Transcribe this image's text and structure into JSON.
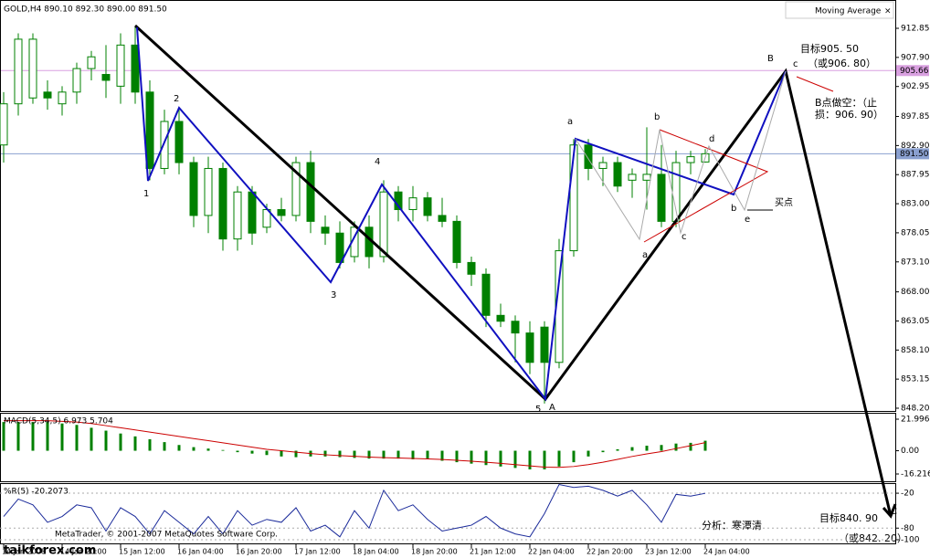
{
  "chart_data": {
    "type": "candlestick",
    "title": "GOLD,H4  890.10 892.30 890.00 891.50",
    "indicator_name": "Moving Average",
    "categories": [
      "14 Jan 2008",
      null,
      null,
      null,
      "14 Jan 20:00",
      null,
      null,
      null,
      "15 Jan 12:00",
      null,
      null,
      null,
      "16 Jan 04:00",
      null,
      null,
      null,
      "16 Jan 20:00",
      null,
      null,
      null,
      "17 Jan 12:00",
      null,
      null,
      null,
      "18 Jan 04:00",
      null,
      null,
      null,
      "18 Jan 20:00",
      null,
      null,
      null,
      "21 Jan 12:00",
      null,
      null,
      null,
      "22 Jan 04:00",
      null,
      null,
      null,
      "22 Jan 20:00",
      null,
      null,
      null,
      "23 Jan 12:00",
      null,
      null,
      null,
      "24 Jan 04:00"
    ],
    "open": [
      893,
      900,
      901,
      902,
      900,
      902,
      906,
      905,
      903,
      910,
      902,
      889,
      897,
      890,
      881,
      889,
      877,
      885,
      879,
      882,
      881,
      890,
      879,
      878,
      874,
      879,
      874,
      885,
      882,
      884,
      881,
      880,
      873,
      871,
      864,
      863,
      861,
      862,
      856,
      875,
      893,
      889,
      890,
      887,
      887,
      888,
      880,
      890,
      890.1
    ],
    "high": [
      902,
      912,
      912,
      904,
      903,
      907,
      909,
      910,
      912,
      913,
      904,
      899,
      899,
      891,
      891,
      890,
      886,
      886,
      883,
      884,
      891,
      892,
      881,
      880,
      880,
      881,
      887,
      886,
      886,
      885,
      884,
      881,
      874,
      872,
      866,
      864,
      863,
      863,
      877,
      894,
      894,
      891,
      891,
      889,
      896,
      893,
      892,
      892,
      892.3
    ],
    "low": [
      890,
      898,
      900,
      899,
      898,
      900,
      904,
      901,
      900,
      900,
      887,
      888,
      888,
      879,
      878,
      875,
      875,
      876,
      878,
      880,
      880,
      878,
      876,
      872,
      873,
      872,
      873,
      880,
      880,
      880,
      879,
      872,
      869,
      862,
      862,
      856,
      854,
      849,
      855,
      874,
      887,
      886,
      885,
      884,
      882,
      879,
      879,
      888,
      890.0
    ],
    "close": [
      900,
      911,
      911,
      901,
      902,
      906,
      908,
      904,
      910,
      902,
      889,
      897,
      890,
      881,
      889,
      877,
      885,
      878,
      882,
      881,
      890,
      880,
      878,
      873,
      879,
      874,
      885,
      882,
      884,
      881,
      880,
      873,
      871,
      864,
      863,
      861,
      856,
      856,
      875,
      893,
      889,
      890,
      886,
      888,
      888,
      880,
      890,
      891,
      891.5
    ],
    "up_color": "#ffffff",
    "down_color": "#008000",
    "candle_outline": "#008000",
    "ylim": [
      847.73,
      914.25
    ],
    "yticks": [
      912.85,
      {
        "value": 907.9,
        "label": "907.90"
      },
      902.95,
      897.85,
      {
        "value": 892.9,
        "label": "892.90"
      },
      887.95,
      {
        "value": 883,
        "label": "883.00"
      },
      878.05,
      {
        "value": 873.1,
        "label": "873.10"
      },
      {
        "value": 868,
        "label": "868.00"
      },
      863.05,
      {
        "value": 858.1,
        "label": "858.10"
      },
      853.15,
      {
        "value": 848.2,
        "label": "848.20"
      }
    ],
    "price_lines": [
      {
        "value": 905.66,
        "label": "905.66",
        "color": "#d9a0e0"
      },
      {
        "value": 891.5,
        "label": "891.50",
        "color": "#8aa0d0"
      }
    ],
    "annotations": [
      {
        "text": "1",
        "color": "#000000"
      },
      {
        "text": "2",
        "color": "#000000"
      },
      {
        "text": "3",
        "color": "#000000"
      },
      {
        "text": "4",
        "color": "#000000"
      },
      {
        "text": "5",
        "color": "#000000"
      },
      {
        "text": "A",
        "color": "#000000"
      },
      {
        "text": "B",
        "color": "#000000"
      },
      {
        "text": "c",
        "color": "#0000cc"
      },
      {
        "text": "a",
        "color": "#0000cc"
      },
      {
        "text": "b",
        "color": "#cc0000"
      },
      {
        "text": "c",
        "color": "#cc0000"
      },
      {
        "text": "d",
        "color": "#cc0000"
      },
      {
        "text": "b",
        "color": "#0000cc"
      },
      {
        "text": "e",
        "color": "#cc0000"
      },
      {
        "text": "a",
        "color": "#cc0000"
      },
      {
        "text": "买点",
        "color": "#000000"
      },
      {
        "text": "目标905. 50",
        "color": "#cc0000"
      },
      {
        "text": "（或906. 80）",
        "color": "#cc0000"
      },
      {
        "text": "B点做空：（止",
        "color": "#9933cc"
      },
      {
        "text": "损：906. 90）",
        "color": "#9933cc"
      },
      {
        "text": "目标840. 90",
        "color": "#cc0000"
      },
      {
        "text": "（或842. 20）",
        "color": "#cc0000"
      },
      {
        "text": "分析：寒潭清",
        "color": "#9933cc"
      },
      {
        "text": "C",
        "color": "#000000"
      }
    ],
    "footer": "MetaTrader, © 2001-2007 MetaQuotes Software Corp.",
    "watermark": "taikforex.com",
    "macd": {
      "label": "MACD(5,34,5) 6.973 5.704",
      "histogram": {
        "color": "#008000",
        "values": [
          20,
          20,
          20,
          20,
          19,
          18,
          16,
          14,
          12,
          10,
          8,
          6,
          4,
          2.5,
          1.5,
          0.5,
          -1,
          -2,
          -3,
          -4,
          -4.5,
          -4,
          -4,
          -4.5,
          -5,
          -5.5,
          -5.5,
          -5.5,
          -6,
          -6,
          -7,
          -8,
          -9,
          -10,
          -11,
          -12,
          -13,
          -13,
          -11,
          -8,
          -4,
          -1,
          1,
          2.5,
          3.5,
          4,
          5,
          5.5,
          6.973
        ]
      },
      "signal": {
        "color": "#cc0000",
        "values": [
          21,
          21,
          21,
          21,
          20.5,
          20,
          19,
          17.5,
          16,
          14.5,
          13,
          11.5,
          10,
          8.5,
          7,
          5.5,
          4,
          2.5,
          1,
          0,
          -1,
          -2,
          -2.8,
          -3.4,
          -3.9,
          -4.4,
          -4.8,
          -5.1,
          -5.4,
          -5.7,
          -6.1,
          -6.7,
          -7.3,
          -8,
          -8.8,
          -9.7,
          -10.6,
          -11.4,
          -11.6,
          -11,
          -9.7,
          -8,
          -6,
          -4,
          -2.2,
          -0.6,
          1.5,
          3.5,
          5.704
        ]
      },
      "ylim": [
        -21.31,
        25.82
      ],
      "yticks": [
        21.996,
        {
          "value": 0,
          "label": "0.00"
        },
        -16.216
      ]
    },
    "wpr": {
      "label": "%R(5) -20.2073",
      "color": "#1a2a9a",
      "values": [
        -60,
        -30,
        -40,
        -70,
        -60,
        -40,
        -45,
        -85,
        -45,
        -60,
        -90,
        -50,
        -70,
        -90,
        -60,
        -90,
        -50,
        -75,
        -65,
        -70,
        -45,
        -85,
        -75,
        -95,
        -50,
        -80,
        -15,
        -50,
        -40,
        -65,
        -85,
        -80,
        -75,
        -60,
        -80,
        -90,
        -95,
        -55,
        -5,
        -10,
        -8,
        -15,
        -25,
        -15,
        -40,
        -70,
        -22,
        -25,
        -20.2073
      ],
      "ylim": [
        -104.7,
        -4.2
      ],
      "yticks": [
        -20,
        -80,
        -100
      ]
    }
  }
}
